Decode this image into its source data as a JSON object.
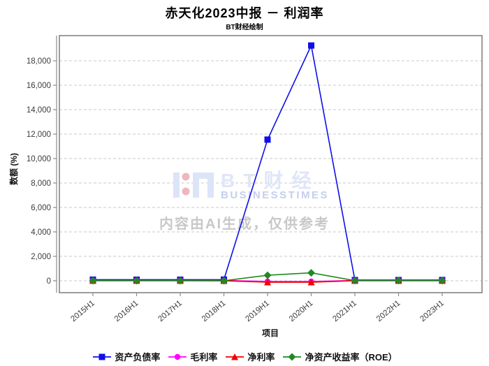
{
  "title": "赤天化2023中报 － 利润率",
  "subtitle": "BT财经绘制",
  "watermark": {
    "brand_cn": "BT财经",
    "brand_en": "BUSINESSTIMES",
    "disclaimer": "内容由AI生成，仅供参考",
    "logo_color": "#dce4f8",
    "dot_color": "#f0b6c0",
    "cn_color": "#e0e6f8",
    "en_color": "#c5cfec",
    "disclaimer_color": "#c8c8c8"
  },
  "chart_data": {
    "type": "line",
    "title": "赤天化2023中报 － 利润率",
    "subtitle": "BT财经绘制",
    "xlabel": "项目",
    "ylabel": "数额 (%)",
    "categories": [
      "2015H1",
      "2016H1",
      "2017H1",
      "2018H1",
      "2019H1",
      "2020H1",
      "2021H1",
      "2022H1",
      "2023H1"
    ],
    "yticks": [
      0,
      2000,
      4000,
      6000,
      8000,
      10000,
      12000,
      14000,
      16000,
      18000
    ],
    "ylim": [
      -975,
      20060
    ],
    "grid": "horizontal-dashed",
    "grid_color": "#c8c8c8",
    "axis_color": "#848484",
    "legend_position": "bottom",
    "series": [
      {
        "name": "资产负债率",
        "color": "#0f0fe8",
        "marker": "square",
        "values": [
          90,
          85,
          85,
          95,
          11550,
          19250,
          55,
          55,
          60
        ]
      },
      {
        "name": "毛利率",
        "color": "#ff00ff",
        "marker": "circle",
        "values": [
          25,
          25,
          25,
          20,
          -60,
          -60,
          25,
          25,
          25
        ]
      },
      {
        "name": "净利率",
        "color": "#ee0000",
        "marker": "triangle",
        "values": [
          5,
          5,
          5,
          0,
          -120,
          -120,
          5,
          5,
          5
        ]
      },
      {
        "name": "净资产收益率（ROE）",
        "color": "#1e8b1e",
        "marker": "diamond",
        "values": [
          5,
          5,
          5,
          0,
          450,
          650,
          10,
          10,
          10
        ]
      }
    ]
  }
}
